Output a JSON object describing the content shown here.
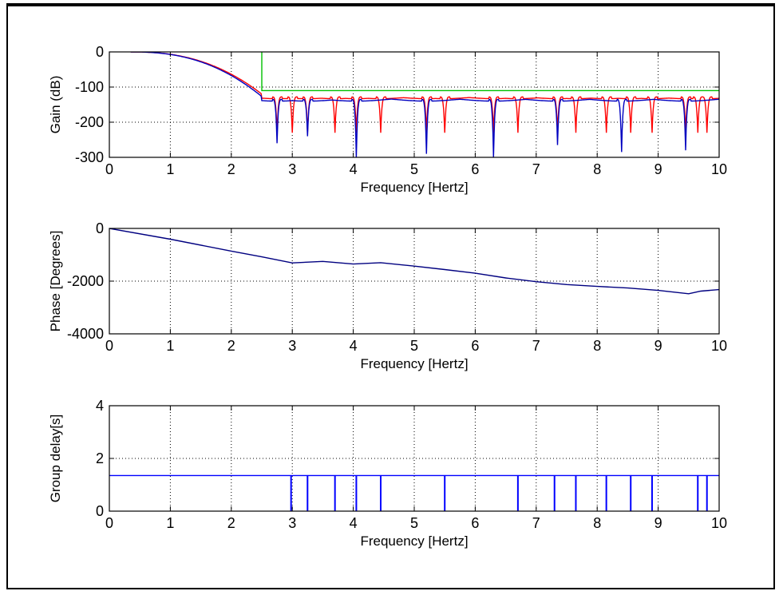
{
  "chart_data": [
    {
      "type": "line",
      "xlabel": "Frequency [Hertz]",
      "ylabel": "Gain (dB)",
      "xlim": [
        0,
        10
      ],
      "ylim": [
        -300,
        0
      ],
      "xticks": [
        "0",
        "1",
        "2",
        "3",
        "4",
        "5",
        "6",
        "7",
        "8",
        "9",
        "10"
      ],
      "yticks": [
        "0",
        "-100",
        "-200",
        "-300"
      ],
      "grid": true,
      "series": [
        {
          "color": "#00c000",
          "points": [
            [
              2.5,
              0
            ],
            [
              2.5,
              -110
            ],
            [
              10,
              -110
            ]
          ]
        },
        {
          "color": "#ff0000",
          "passband_end": 2.5,
          "floor": -128,
          "notches": [
            2.75,
            3.0,
            3.25,
            3.7,
            4.05,
            4.45,
            5.2,
            5.5,
            6.3,
            6.7,
            7.35,
            7.65,
            8.15,
            8.55,
            8.9,
            9.45,
            9.65,
            9.8
          ]
        },
        {
          "color": "#0000c0",
          "passband_end": 2.5,
          "floor": -135,
          "notches": [
            [
              2.75,
              -260
            ],
            [
              3.25,
              -240
            ],
            [
              4.05,
              -300
            ],
            [
              5.2,
              -290
            ],
            [
              6.3,
              -300
            ],
            [
              7.35,
              -265
            ],
            [
              8.4,
              -285
            ],
            [
              9.45,
              -280
            ]
          ]
        }
      ]
    },
    {
      "type": "line",
      "xlabel": "Frequency [Hertz]",
      "ylabel": "Phase [Degrees]",
      "xlim": [
        0,
        10
      ],
      "ylim": [
        -4000,
        0
      ],
      "xticks": [
        "0",
        "1",
        "2",
        "3",
        "4",
        "5",
        "6",
        "7",
        "8",
        "9",
        "10"
      ],
      "yticks": [
        "0",
        "-2000",
        "-4000"
      ],
      "grid": true,
      "series": [
        {
          "color": "#000080",
          "points": [
            [
              0,
              0
            ],
            [
              1,
              -410
            ],
            [
              2,
              -860
            ],
            [
              2.5,
              -1080
            ],
            [
              3,
              -1310
            ],
            [
              3.5,
              -1250
            ],
            [
              4,
              -1350
            ],
            [
              4.45,
              -1300
            ],
            [
              5,
              -1430
            ],
            [
              5.5,
              -1560
            ],
            [
              6,
              -1700
            ],
            [
              6.5,
              -1880
            ],
            [
              7,
              -2020
            ],
            [
              7.5,
              -2130
            ],
            [
              8,
              -2200
            ],
            [
              8.5,
              -2260
            ],
            [
              9,
              -2350
            ],
            [
              9.5,
              -2480
            ],
            [
              9.7,
              -2380
            ],
            [
              10,
              -2320
            ]
          ]
        }
      ]
    },
    {
      "type": "line",
      "xlabel": "Frequency [Hertz]",
      "ylabel": "Group delay[s]",
      "xlim": [
        0,
        10
      ],
      "ylim": [
        0,
        4
      ],
      "xticks": [
        "0",
        "1",
        "2",
        "3",
        "4",
        "5",
        "6",
        "7",
        "8",
        "9",
        "10"
      ],
      "yticks": [
        "0",
        "2",
        "4"
      ],
      "grid": true,
      "series": [
        {
          "color": "#0000ff",
          "level": 1.35,
          "spikes": [
            2.98,
            3.25,
            3.7,
            4.05,
            4.45,
            5.5,
            6.7,
            7.3,
            7.65,
            8.15,
            8.55,
            8.9,
            9.65,
            9.8
          ]
        }
      ]
    }
  ]
}
